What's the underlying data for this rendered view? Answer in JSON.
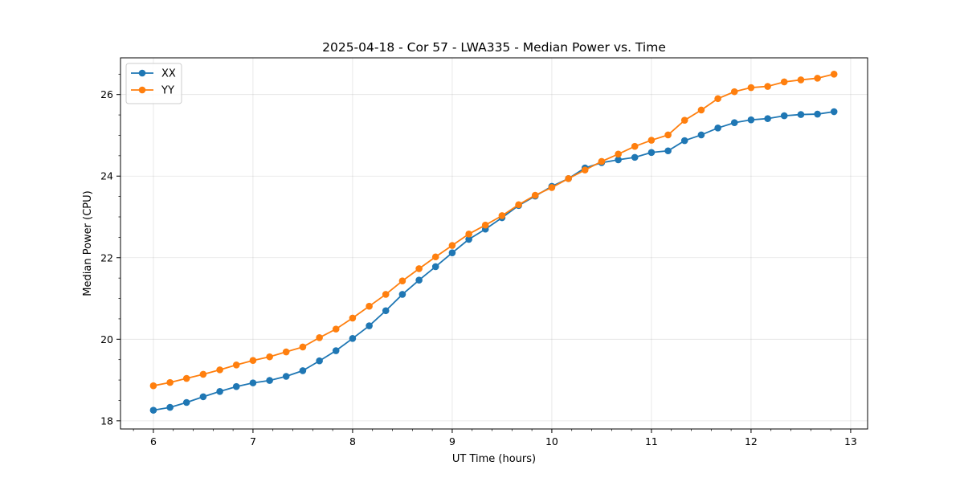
{
  "chart_data": {
    "type": "line",
    "title": "2025-04-18 - Cor 57 - LWA335 - Median Power vs. Time",
    "xlabel": "UT Time (hours)",
    "ylabel": "Median Power (CPU)",
    "xlim": [
      5.67,
      13.17
    ],
    "ylim": [
      17.8,
      26.9
    ],
    "xticks": [
      6,
      7,
      8,
      9,
      10,
      11,
      12,
      13
    ],
    "yticks": [
      18,
      20,
      22,
      24,
      26
    ],
    "xtick_labels": [
      "6",
      "7",
      "8",
      "9",
      "10",
      "11",
      "12",
      "13"
    ],
    "ytick_labels": [
      "18",
      "20",
      "22",
      "24",
      "26"
    ],
    "grid": true,
    "legend_position": "top-left",
    "x": [
      6.0,
      6.167,
      6.333,
      6.5,
      6.667,
      6.833,
      7.0,
      7.167,
      7.333,
      7.5,
      7.667,
      7.833,
      8.0,
      8.167,
      8.333,
      8.5,
      8.667,
      8.833,
      9.0,
      9.167,
      9.333,
      9.5,
      9.667,
      9.833,
      10.0,
      10.167,
      10.333,
      10.5,
      10.667,
      10.833,
      11.0,
      11.167,
      11.333,
      11.5,
      11.667,
      11.833,
      12.0,
      12.167,
      12.333,
      12.5,
      12.667,
      12.833
    ],
    "series": [
      {
        "name": "XX",
        "color": "#1f77b4",
        "values": [
          18.26,
          18.33,
          18.45,
          18.59,
          18.72,
          18.84,
          18.93,
          18.99,
          19.09,
          19.23,
          19.47,
          19.72,
          20.02,
          20.33,
          20.7,
          21.1,
          21.45,
          21.78,
          22.12,
          22.45,
          22.7,
          22.98,
          23.28,
          23.51,
          23.75,
          23.94,
          24.2,
          24.33,
          24.4,
          24.46,
          24.58,
          24.62,
          24.87,
          25.01,
          25.18,
          25.31,
          25.38,
          25.41,
          25.48,
          25.51,
          25.52,
          25.58
        ]
      },
      {
        "name": "YY",
        "color": "#ff7f0e",
        "values": [
          18.86,
          18.94,
          19.04,
          19.14,
          19.25,
          19.37,
          19.48,
          19.57,
          19.69,
          19.81,
          20.04,
          20.25,
          20.52,
          20.81,
          21.1,
          21.43,
          21.73,
          22.02,
          22.3,
          22.58,
          22.8,
          23.03,
          23.3,
          23.53,
          23.72,
          23.94,
          24.15,
          24.36,
          24.54,
          24.73,
          24.88,
          25.01,
          25.37,
          25.62,
          25.9,
          26.07,
          26.17,
          26.2,
          26.31,
          26.36,
          26.4,
          26.5
        ]
      }
    ]
  }
}
